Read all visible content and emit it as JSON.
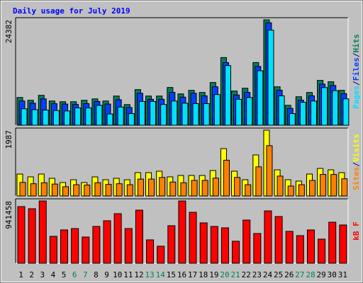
{
  "chart_data": [
    {
      "type": "bar",
      "title": "Daily usage for July 2019",
      "ylim": [
        0,
        24382
      ],
      "yticks": [
        24382
      ],
      "legend_separator": "/",
      "series": [
        {
          "name": "Hits",
          "color": "#00805c",
          "values": [
            6420,
            5770,
            6920,
            5600,
            5440,
            5440,
            5770,
            6090,
            5600,
            6750,
            4780,
            8240,
            6750,
            6750,
            8730,
            7250,
            8070,
            7580,
            9880,
            15650,
            7910,
            8560,
            14500,
            24382,
            8890,
            4610,
            6590,
            7580,
            10380,
            10050,
            8070
          ]
        },
        {
          "name": "Files",
          "color": "#0040ff",
          "values": [
            5600,
            5100,
            6100,
            5000,
            4900,
            4800,
            5000,
            5500,
            4900,
            5900,
            4100,
            7400,
            6000,
            6000,
            7600,
            6500,
            7400,
            6800,
            8900,
            14500,
            7000,
            7600,
            13600,
            23700,
            8100,
            3900,
            5800,
            6800,
            9500,
            9200,
            7300
          ]
        },
        {
          "name": "Pages",
          "color": "#00e0ff",
          "values": [
            3800,
            3600,
            3500,
            3400,
            3300,
            4000,
            4000,
            4600,
            2600,
            4200,
            2700,
            5500,
            5500,
            4800,
            5600,
            5100,
            5000,
            5000,
            7100,
            13800,
            6000,
            6400,
            12600,
            22000,
            6800,
            2700,
            5300,
            5600,
            8700,
            8000,
            6100
          ]
        }
      ]
    },
    {
      "type": "bar",
      "ylim": [
        0,
        1987
      ],
      "yticks": [
        1987
      ],
      "legend_separator": "/",
      "series": [
        {
          "name": "Visits",
          "color": "#ffff00",
          "values": [
            662,
            577,
            662,
            534,
            406,
            491,
            406,
            577,
            491,
            534,
            491,
            705,
            705,
            748,
            577,
            620,
            620,
            620,
            769,
            1431,
            748,
            491,
            1239,
            1987,
            790,
            491,
            449,
            662,
            833,
            790,
            705
          ]
        },
        {
          "name": "Sites",
          "color": "#ff8000",
          "values": [
            410,
            370,
            400,
            360,
            280,
            340,
            330,
            400,
            350,
            370,
            340,
            510,
            510,
            560,
            420,
            400,
            470,
            470,
            540,
            1080,
            560,
            340,
            880,
            1520,
            600,
            300,
            340,
            470,
            650,
            650,
            520
          ]
        }
      ]
    },
    {
      "type": "bar",
      "ylim": [
        0,
        941458
      ],
      "yticks": [
        941458
      ],
      "categories": [
        "1",
        "2",
        "3",
        "4",
        "5",
        "6",
        "7",
        "8",
        "9",
        "10",
        "11",
        "12",
        "13",
        "14",
        "15",
        "16",
        "17",
        "18",
        "19",
        "20",
        "21",
        "22",
        "23",
        "24",
        "25",
        "26",
        "27",
        "28",
        "29",
        "30",
        "31"
      ],
      "category_colors": [
        "#000000",
        "#000000",
        "#000000",
        "#000000",
        "#000000",
        "#00805c",
        "#00805c",
        "#000000",
        "#000000",
        "#000000",
        "#000000",
        "#000000",
        "#00805c",
        "#00805c",
        "#000000",
        "#000000",
        "#000000",
        "#000000",
        "#000000",
        "#00805c",
        "#00805c",
        "#000000",
        "#000000",
        "#000000",
        "#000000",
        "#000000",
        "#00805c",
        "#00805c",
        "#000000",
        "#000000",
        "#000000"
      ],
      "series": [
        {
          "name": "kB F",
          "color": "#ff0000",
          "values": [
            855900,
            823800,
            941458,
            406500,
            503000,
            524000,
            396000,
            556000,
            642000,
            749000,
            524000,
            802000,
            353000,
            257000,
            567000,
            941458,
            770000,
            610000,
            556000,
            535000,
            332000,
            652000,
            449000,
            791000,
            706000,
            481000,
            417000,
            503000,
            364000,
            620000,
            578000
          ]
        }
      ]
    }
  ]
}
